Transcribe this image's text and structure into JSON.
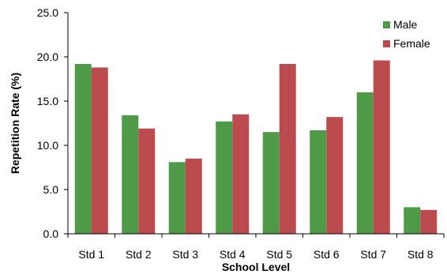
{
  "chart_data": {
    "type": "bar",
    "title": "",
    "xlabel": "School Level",
    "ylabel": "Repetition Rate (%)",
    "categories": [
      "Std 1",
      "Std 2",
      "Std 3",
      "Std 4",
      "Std 5",
      "Std 6",
      "Std 7",
      "Std 8"
    ],
    "series": [
      {
        "name": "Male",
        "color": "#4E9A46",
        "values": [
          19.2,
          13.4,
          8.1,
          12.7,
          11.5,
          11.7,
          16.0,
          3.0
        ]
      },
      {
        "name": "Female",
        "color": "#BC4B4F",
        "values": [
          18.8,
          11.9,
          8.5,
          13.5,
          19.2,
          13.2,
          19.6,
          2.7
        ]
      }
    ],
    "ylim": [
      0,
      25
    ],
    "yticks": [
      0,
      5,
      10,
      15,
      20,
      25
    ],
    "ytick_labels": [
      "0.0",
      "5.0",
      "10.0",
      "15.0",
      "20.0",
      "25.0"
    ],
    "grid": false,
    "legend_position": "top-right"
  }
}
